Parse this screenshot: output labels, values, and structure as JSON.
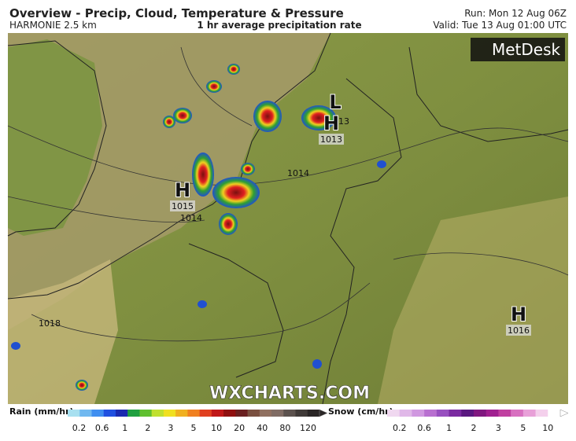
{
  "header": {
    "title": "Overview - Precip, Cloud, Temperature & Pressure",
    "model": "HARMONIE 2.5 km",
    "subtitle": "1 hr average precipitation rate",
    "run": "Run: Mon 12 Aug 06Z",
    "valid": "Valid: Tue 13 Aug 01:00 UTC"
  },
  "logo": "MetDesk",
  "watermark": "WXCHARTS.COM",
  "pressure_centers": [
    {
      "symbol": "H",
      "label": "1015"
    },
    {
      "symbol": "H",
      "label": "1013"
    },
    {
      "symbol": "H",
      "label": "1016"
    },
    {
      "symbol": "L"
    }
  ],
  "isobar_labels": [
    "1014",
    "1014",
    "1018",
    "13"
  ],
  "legend": {
    "rain": {
      "title": "Rain (mm/hr)",
      "ticks": [
        "0.2",
        "0.6",
        "1",
        "2",
        "3",
        "5",
        "10",
        "20",
        "40",
        "80",
        "120"
      ]
    },
    "snow": {
      "title": "Snow (cm/hr)",
      "ticks": [
        "0.2",
        "0.6",
        "1",
        "2",
        "3",
        "5",
        "10"
      ]
    }
  }
}
